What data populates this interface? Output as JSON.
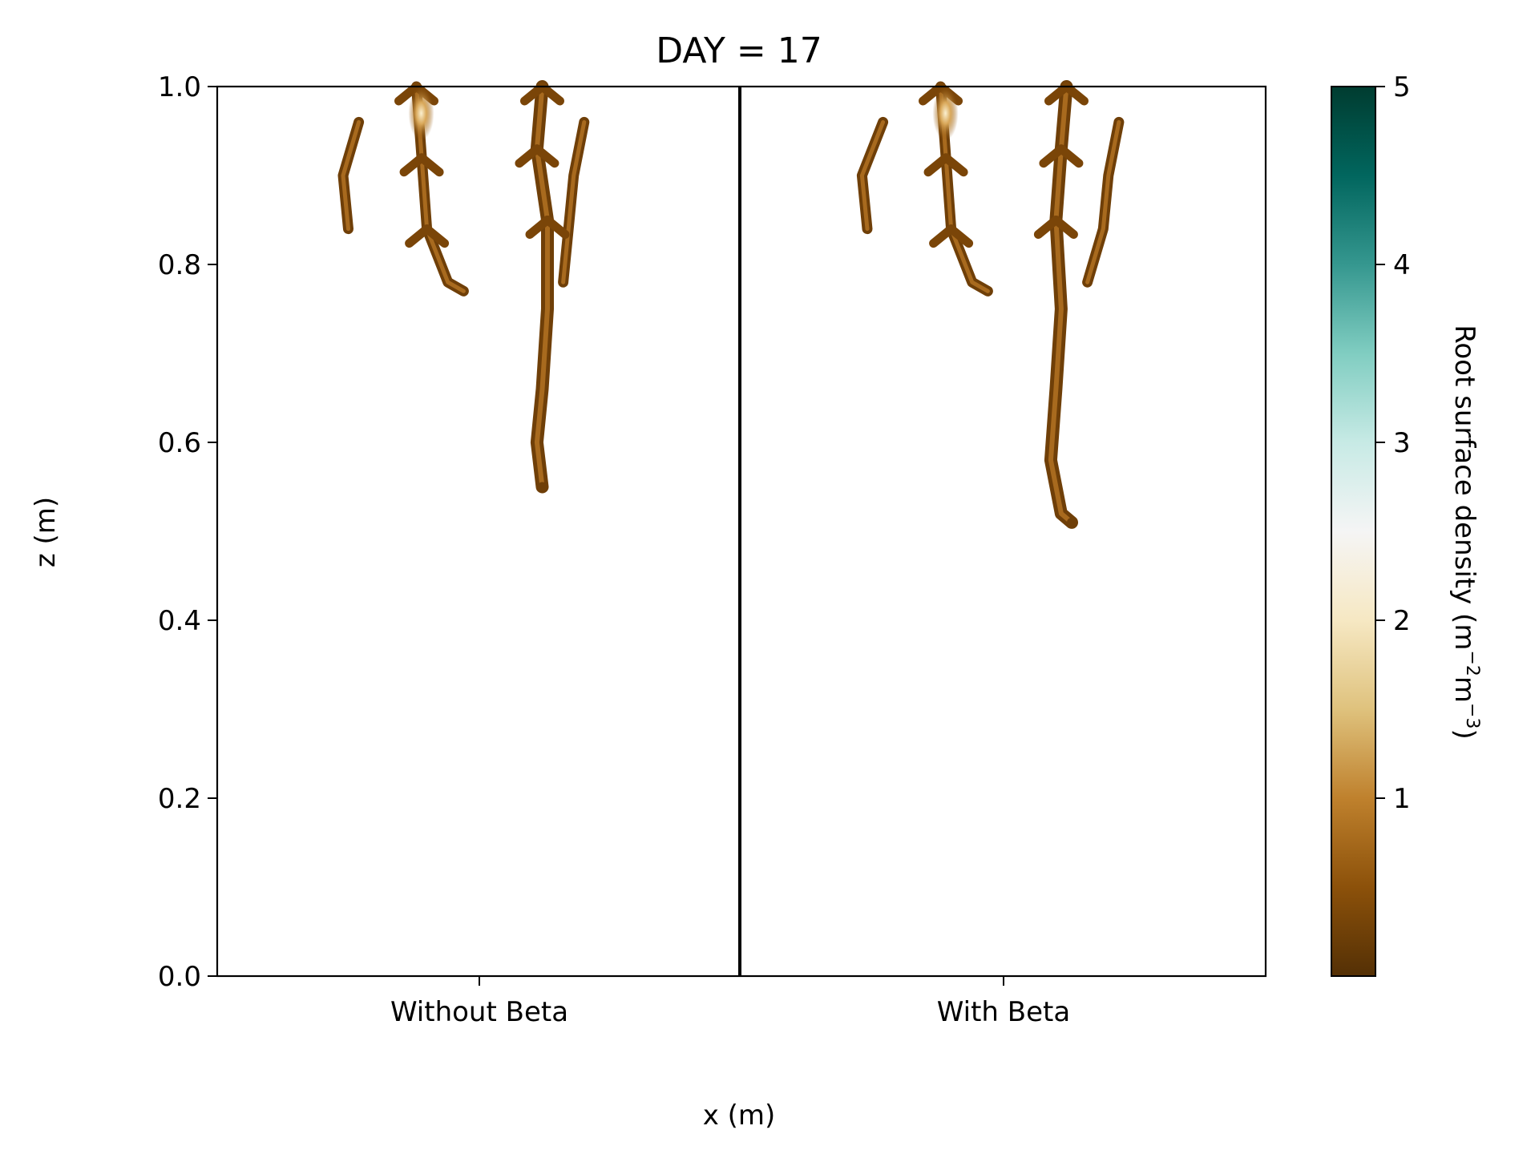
{
  "chart_data": {
    "type": "heatmap",
    "title": "DAY = 17",
    "xlabel": "x (m)",
    "ylabel": "z (m)",
    "ylim": [
      0,
      1
    ],
    "yticks": [
      "0.0",
      "0.2",
      "0.4",
      "0.6",
      "0.8",
      "1.0"
    ],
    "categories": [
      "Without Beta",
      "With Beta"
    ],
    "grid": false,
    "colorbar": {
      "label": "Root surface density (m",
      "label_sup1": "−2",
      "label_mid": "m",
      "label_sup2": "−3",
      "label_end": ")",
      "range": [
        0,
        5
      ],
      "ticks": [
        "1",
        "2",
        "3",
        "4",
        "5"
      ],
      "colormap": "BrBG",
      "stops": [
        "#543005",
        "#8c510a",
        "#bf812d",
        "#dfc27d",
        "#f6e8c3",
        "#f5f5f5",
        "#c7eae5",
        "#80cdc1",
        "#35978f",
        "#01665e",
        "#003c30"
      ]
    },
    "panels": [
      {
        "name": "Without Beta",
        "max_depth_z": 0.55,
        "roots": [
          {
            "z": [
              1.0,
              0.92,
              0.84,
              0.78,
              0.77
            ],
            "x_offset": [
              -0.12,
              -0.11,
              -0.1,
              -0.06,
              -0.03
            ]
          },
          {
            "z": [
              1.0,
              0.93,
              0.85,
              0.75,
              0.66,
              0.6,
              0.55
            ],
            "x_offset": [
              0.12,
              0.11,
              0.13,
              0.13,
              0.12,
              0.11,
              0.12
            ]
          },
          {
            "z": [
              0.96,
              0.9,
              0.84
            ],
            "x_offset": [
              -0.23,
              -0.26,
              -0.25
            ]
          },
          {
            "z": [
              0.96,
              0.9,
              0.84,
              0.78
            ],
            "x_offset": [
              0.2,
              0.18,
              0.17,
              0.16
            ]
          }
        ]
      },
      {
        "name": "With Beta",
        "max_depth_z": 0.51,
        "roots": [
          {
            "z": [
              1.0,
              0.92,
              0.84,
              0.78,
              0.77
            ],
            "x_offset": [
              -0.12,
              -0.11,
              -0.1,
              -0.06,
              -0.03
            ]
          },
          {
            "z": [
              1.0,
              0.93,
              0.85,
              0.75,
              0.66,
              0.58,
              0.52,
              0.51
            ],
            "x_offset": [
              0.12,
              0.11,
              0.1,
              0.11,
              0.1,
              0.09,
              0.11,
              0.13
            ]
          },
          {
            "z": [
              0.96,
              0.9,
              0.84
            ],
            "x_offset": [
              -0.23,
              -0.27,
              -0.26
            ]
          },
          {
            "z": [
              0.96,
              0.9,
              0.84,
              0.78
            ],
            "x_offset": [
              0.22,
              0.2,
              0.19,
              0.16
            ]
          }
        ]
      }
    ]
  }
}
